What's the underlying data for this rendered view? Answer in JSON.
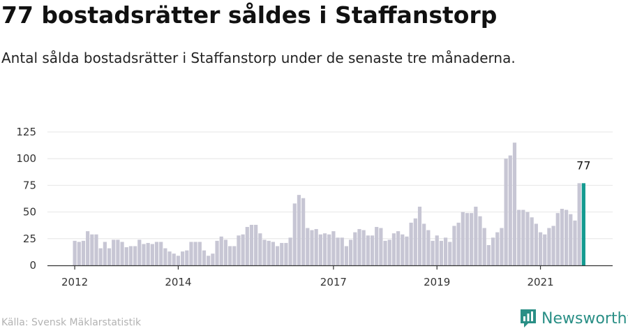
{
  "title": "77 bostadsrätter såldes i Staffanstorp",
  "subtitle": "Antal sålda bostadsrätter i Staffanstorp under de senaste tre månaderna.",
  "source": "Källa: Svensk Mäklarstatistik",
  "brand": {
    "name": "Newsworthy",
    "icon": "newsworthy-logo-icon",
    "color": "#2a8f86"
  },
  "colors": {
    "bar": "#c7c6d4",
    "highlight": "#139a90",
    "axis": "#333333",
    "grid": "#e6e6e6"
  },
  "chart_data": {
    "type": "bar",
    "ylim": [
      0,
      125
    ],
    "yticks": [
      0,
      25,
      50,
      75,
      100,
      125
    ],
    "xtick_labels": [
      {
        "label": "2012",
        "index": 0
      },
      {
        "label": "2014",
        "index": 24
      },
      {
        "label": "2017",
        "index": 60
      },
      {
        "label": "2019",
        "index": 84
      },
      {
        "label": "2021",
        "index": 108
      }
    ],
    "highlight_label": "77",
    "values": [
      23,
      22,
      23,
      32,
      29,
      29,
      16,
      22,
      16,
      24,
      24,
      22,
      17,
      18,
      18,
      24,
      20,
      21,
      20,
      22,
      22,
      16,
      13,
      11,
      9,
      13,
      14,
      22,
      22,
      22,
      14,
      9,
      11,
      23,
      27,
      24,
      18,
      18,
      28,
      29,
      36,
      38,
      38,
      30,
      24,
      23,
      22,
      18,
      21,
      21,
      26,
      58,
      66,
      63,
      35,
      33,
      34,
      29,
      30,
      29,
      32,
      26,
      26,
      18,
      24,
      31,
      34,
      33,
      28,
      28,
      36,
      35,
      23,
      24,
      30,
      32,
      29,
      27,
      40,
      44,
      55,
      39,
      33,
      23,
      28,
      23,
      26,
      22,
      37,
      40,
      50,
      49,
      49,
      55,
      46,
      35,
      19,
      26,
      31,
      35,
      100,
      103,
      115,
      52,
      52,
      50,
      45,
      39,
      31,
      29,
      35,
      37,
      49,
      53,
      52,
      48,
      42,
      77,
      77
    ]
  }
}
